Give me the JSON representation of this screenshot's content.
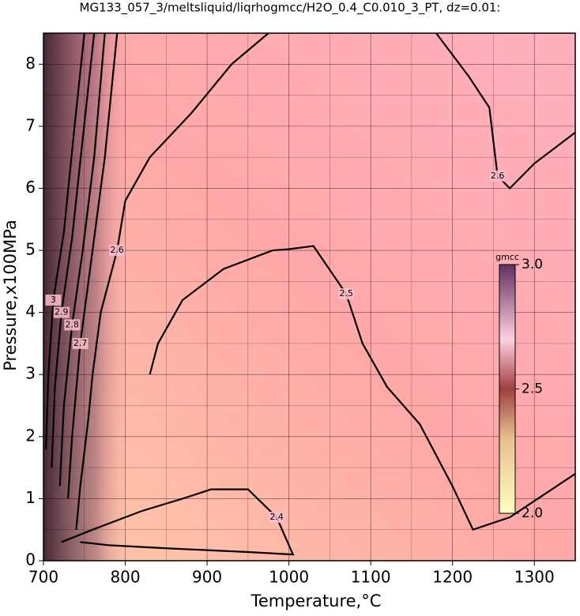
{
  "chart_data": {
    "type": "contour",
    "title": "MG133_057_3/meltsliquid/liqrhogmcc/H2O_0.4_C0.010_3_PT, dz=0.01:",
    "x_label": "Temperature,°C",
    "y_label": "Pressure,x100MPa",
    "xlim": [
      700,
      1350
    ],
    "ylim": [
      0,
      8.5
    ],
    "xticks": [
      700,
      800,
      900,
      1000,
      1100,
      1200,
      1300
    ],
    "yticks": [
      0,
      1,
      2,
      3,
      4,
      5,
      6,
      7,
      8
    ],
    "grid": true,
    "colorbar": {
      "label": "gmcc",
      "lim": [
        2,
        3
      ],
      "ticks": [
        {
          "value": 2,
          "label": "2.0"
        },
        {
          "value": 2.5,
          "label": "2.5"
        },
        {
          "value": 3,
          "label": "3.0"
        }
      ]
    },
    "contours": [
      {
        "level": 2.4,
        "x": [
          722,
          760,
          820,
          870,
          905,
          950,
          985,
          1005,
          950,
          850,
          780,
          745
        ],
        "y": [
          0.3,
          0.5,
          0.8,
          1.0,
          1.15,
          1.15,
          0.7,
          0.1,
          0.14,
          0.2,
          0.25,
          0.3
        ]
      },
      {
        "level": 2.5,
        "x": [
          830,
          840,
          870,
          920,
          980,
          1000,
          1030,
          1070,
          1090,
          1120,
          1160,
          1200,
          1225,
          1270,
          1350
        ],
        "y": [
          3.0,
          3.5,
          4.2,
          4.7,
          5.0,
          5.02,
          5.07,
          4.3,
          3.5,
          2.8,
          2.2,
          1.2,
          0.5,
          0.7,
          1.4
        ]
      },
      {
        "level": 2.6,
        "x": [
          975,
          930,
          880,
          830,
          800,
          790,
          770,
          760,
          755,
          745,
          740
        ],
        "y": [
          8.5,
          8.0,
          7.2,
          6.5,
          5.8,
          5.0,
          4.0,
          3.0,
          2.3,
          1.2,
          0.5
        ]
      },
      {
        "level": 2.6,
        "x": [
          1180,
          1220,
          1245,
          1255,
          1270,
          1300,
          1350
        ],
        "y": [
          8.5,
          7.8,
          7.3,
          6.2,
          6.0,
          6.4,
          6.9
        ]
      },
      {
        "level": 2.7,
        "x": [
          790,
          775,
          760,
          745,
          735,
          730
        ],
        "y": [
          8.5,
          6.5,
          5.0,
          3.5,
          2.0,
          1.0
        ]
      },
      {
        "level": 2.8,
        "x": [
          775,
          762,
          748,
          735,
          725,
          720
        ],
        "y": [
          8.5,
          6.5,
          5.0,
          3.8,
          2.5,
          1.2
        ]
      },
      {
        "level": 2.9,
        "x": [
          762,
          748,
          735,
          722,
          714,
          710
        ],
        "y": [
          8.5,
          6.8,
          5.2,
          4.0,
          2.8,
          1.5
        ]
      },
      {
        "level": 3,
        "x": [
          750,
          738,
          725,
          712,
          706,
          703
        ],
        "y": [
          8.5,
          7.0,
          5.3,
          4.2,
          3.0,
          1.8
        ]
      }
    ]
  }
}
